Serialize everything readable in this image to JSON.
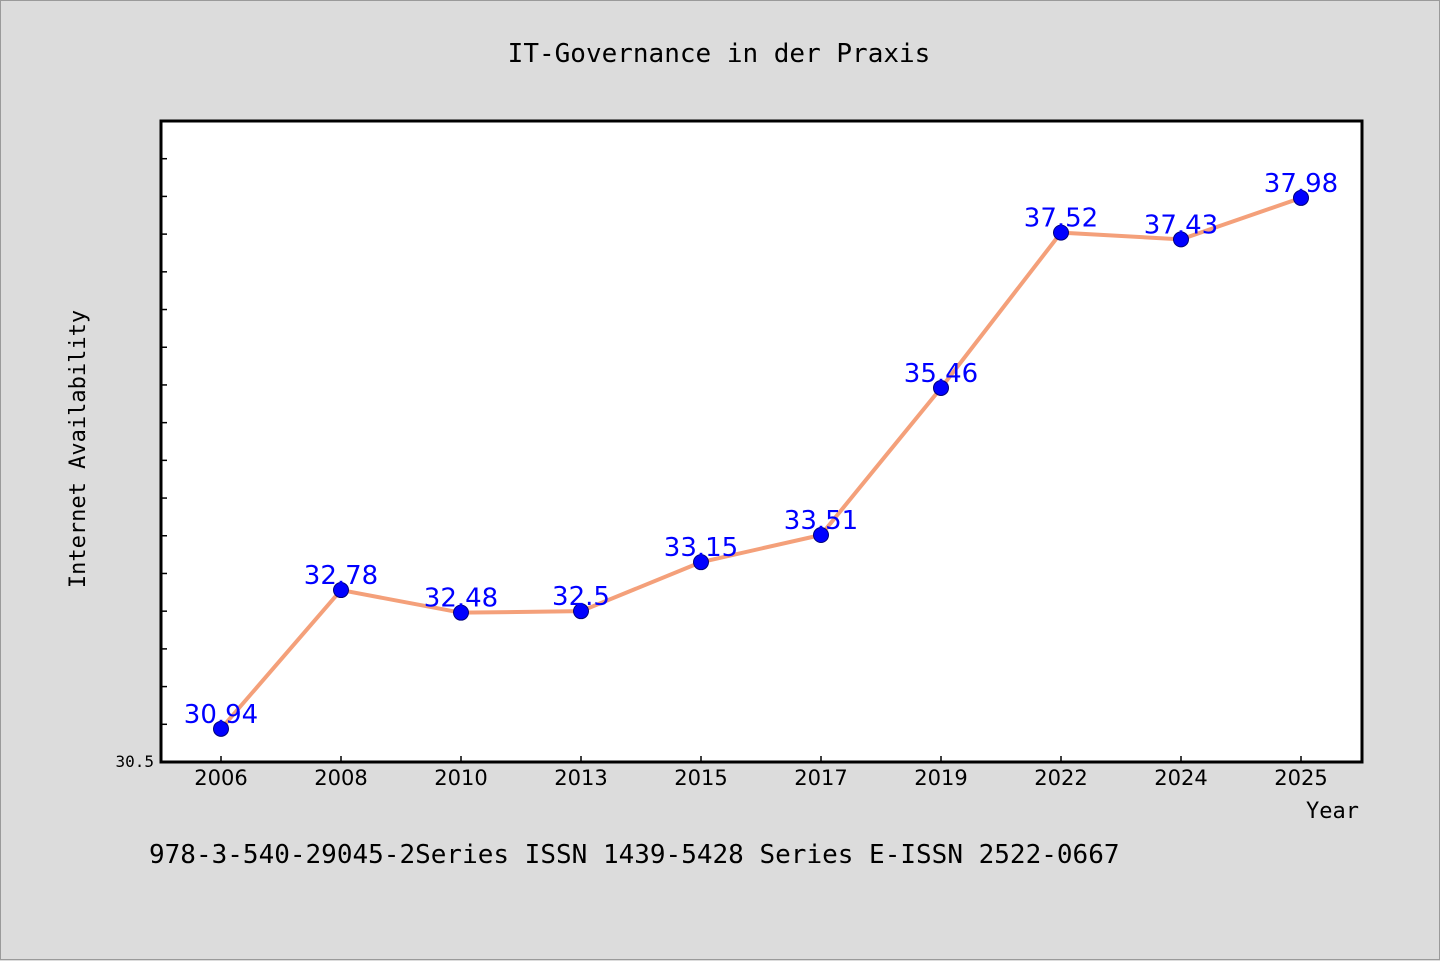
{
  "colors": {
    "background": "#dcdcdc",
    "plot_background": "#ffffff",
    "line": "#f4a07a",
    "marker": "#0000ff",
    "label": "#0000ff",
    "axis": "#000000"
  },
  "footer_text": "978-3-540-29045-2Series ISSN 1439-5428 Series E-ISSN 2522-0667",
  "chart_data": {
    "type": "line",
    "title": "IT-Governance in der Praxis",
    "xlabel": "Year",
    "ylabel": "Internet Availability",
    "categories": [
      "2006",
      "2008",
      "2010",
      "2013",
      "2015",
      "2017",
      "2019",
      "2022",
      "2024",
      "2025"
    ],
    "values": [
      30.94,
      32.78,
      32.48,
      32.5,
      33.15,
      33.51,
      35.46,
      37.52,
      37.43,
      37.98
    ],
    "ylim": [
      30.5,
      39.0
    ],
    "y_tick_labels": [
      "30.5"
    ],
    "data_labels": true,
    "grid": false,
    "legend": "none"
  }
}
